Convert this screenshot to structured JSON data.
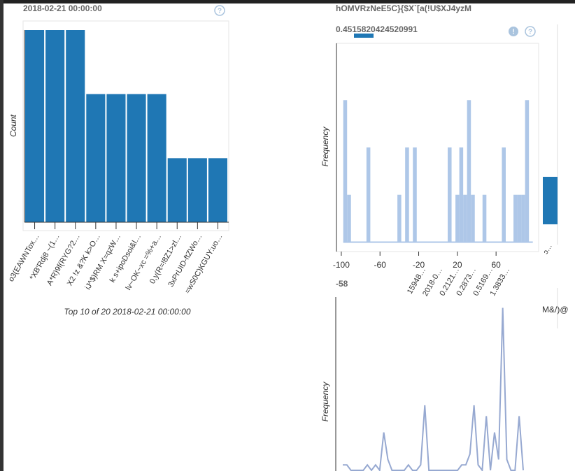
{
  "chart_data": [
    {
      "type": "bar",
      "title": "2018-02-21 00:00:00",
      "categories": [
        "o3(EAWNTox…",
        "*XB'Rdj8 ~(1…",
        "A*R)9f(RYG?2…",
        "X2 !z &?K k>O…",
        "iJ^$)RM X=qzW…",
        "k s+ipoDsoi&l…",
        "lv~OK~xc =%+a…",
        "0,y(R=!8Z1>zl…",
        "3xPrUID-ftZWo…",
        "=wS0C)KGUY:uo…"
      ],
      "values": [
        3,
        3,
        3,
        2,
        2,
        2,
        2,
        1,
        1,
        1
      ],
      "color": "#1f77b4",
      "ylim": [
        0,
        3
      ],
      "ylabel": "Count",
      "xlabel": "Top 10 of 20 2018-02-21 00:00:00"
    },
    {
      "type": "histogram",
      "title": "hOMVRzNeE5C}{$X`[a(!U$XJ4yzM",
      "subtitle": "0.4515820424520991",
      "bins": [
        -98,
        -94,
        -90,
        -86,
        -82,
        -78,
        -74,
        -70,
        -66,
        -62,
        -58,
        -54,
        -50,
        -46,
        -42,
        -38,
        -34,
        -30,
        -26,
        -22,
        -18,
        -14,
        -10,
        -6,
        -2,
        2,
        6,
        10,
        14,
        18,
        22,
        26,
        30,
        34,
        38,
        42,
        46,
        50,
        54,
        58,
        62,
        66,
        70,
        74,
        78,
        82,
        86,
        90,
        94,
        98
      ],
      "values": [
        3,
        1,
        0,
        0,
        0,
        0,
        2,
        0,
        0,
        0,
        0,
        0,
        0,
        0,
        1,
        0,
        2,
        0,
        2,
        0,
        0,
        0,
        0,
        0,
        0,
        0,
        0,
        2,
        0,
        1,
        2,
        1,
        3,
        1,
        0,
        0,
        1,
        0,
        0,
        0,
        0,
        2,
        0,
        0,
        1,
        1,
        1,
        3,
        0
      ],
      "color": "#aec7e8",
      "xlim": [
        -105,
        104
      ],
      "xticks": [
        -100,
        -60,
        -20,
        20,
        60
      ],
      "ylim": [
        -0.2,
        4.2
      ],
      "ylabel": "Frequency"
    },
    {
      "type": "line",
      "values": [
        1,
        1,
        0,
        0,
        0,
        0,
        1,
        0,
        1,
        0,
        7,
        2,
        0,
        0,
        0,
        0,
        1,
        0,
        0,
        1,
        12,
        0,
        0,
        0,
        0,
        0,
        0,
        0,
        0,
        1,
        1,
        3,
        12,
        1,
        0,
        10,
        0,
        7,
        2,
        30,
        2,
        0,
        0,
        10,
        0
      ],
      "color": "#97a9d1",
      "ylim": [
        0,
        32
      ],
      "ylabel": "Frequency"
    }
  ],
  "fragments": {
    "top_label": "-58",
    "right_label": "M&/)@",
    "side_label": "ɔ…",
    "rotated": [
      "15948…",
      "2018-0…",
      "0.2121…",
      "0.2873…",
      "0.5169…",
      "1.3833…"
    ]
  }
}
